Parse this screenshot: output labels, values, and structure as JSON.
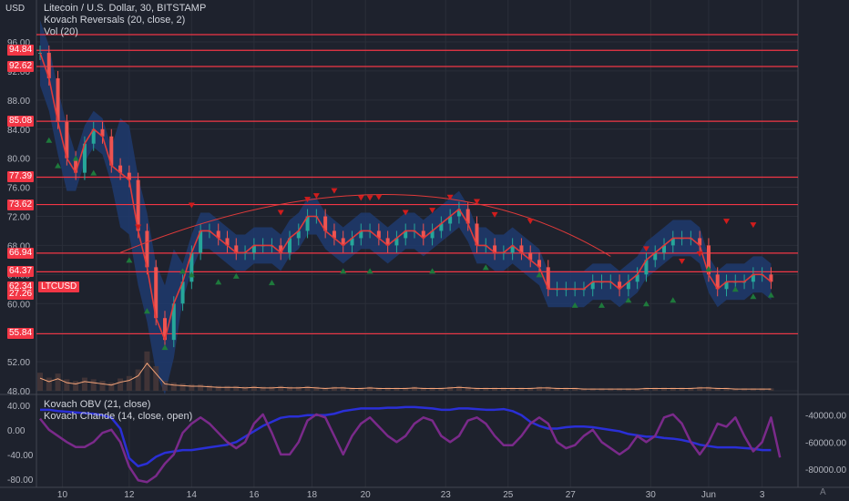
{
  "header": {
    "currency": "USD",
    "title": "Litecoin / U.S. Dollar, 30, BITSTAMP",
    "indicator1": "Kovach Reversals (20, close, 2)",
    "indicator2": "Vol (20)",
    "lower_indicator1": "Kovach OBV (21, close)",
    "lower_indicator2": "Kovach Chande (14, close, open)",
    "auto_button": "A"
  },
  "symbol_label": "LTCUSD",
  "price_labels": [
    {
      "value": "94.84",
      "price": 94.84
    },
    {
      "value": "92.62",
      "price": 92.62
    },
    {
      "value": "85.08",
      "price": 85.08
    },
    {
      "value": "77.39",
      "price": 77.39
    },
    {
      "value": "73.62",
      "price": 73.62
    },
    {
      "value": "66.94",
      "price": 66.94
    },
    {
      "value": "64.37",
      "price": 64.37
    },
    {
      "value": "62.34",
      "price": 62.34
    },
    {
      "value": "27.26",
      "price": 61.3
    },
    {
      "value": "55.84",
      "price": 55.84
    }
  ],
  "colors": {
    "background": "#1e222d",
    "hline": "#f23645",
    "band": "#1e3a6e",
    "grid": "#2a2e39",
    "ma": "#e03a3a",
    "candle_up": "#26a69a",
    "candle_down": "#ef5350",
    "obv": "#2a2fd6",
    "chande": "#7a2a8a",
    "triangle_up": "#1e7a3c",
    "triangle_down": "#d01c1c"
  },
  "chart_data": [
    {
      "type": "line",
      "name_text": "Litecoin / U.S. Dollar, 30, BITSTAMP",
      "title": "Litecoin / U.S. Dollar, 30, BITSTAMP",
      "y_axis_unit": "USD",
      "y_ticks": [
        96,
        92,
        88,
        84,
        80,
        76,
        72,
        68,
        64,
        60,
        56,
        52,
        48
      ],
      "y_tick_labels": [
        "96.00",
        "92.00",
        "88.00",
        "84.00",
        "80.00",
        "76.00",
        "72.00",
        "68.00",
        "64.00",
        "60.00",
        "56.00",
        "52.00",
        "48.00"
      ],
      "ylim": [
        47.5,
        97
      ],
      "x_tick_labels": [
        "10",
        "12",
        "14",
        "16",
        "18",
        "20",
        "23",
        "25",
        "27",
        "30",
        "Jun",
        "3"
      ],
      "x_tick_index": [
        2.5,
        10,
        17,
        24,
        30.5,
        36.5,
        45.5,
        52.5,
        59.5,
        68.5,
        75,
        81
      ],
      "xlim": [
        0,
        84
      ],
      "horizontal_levels": [
        97.0,
        94.84,
        92.62,
        85.08,
        77.39,
        73.62,
        66.94,
        64.37,
        55.84
      ],
      "price": [
        94.5,
        91,
        85,
        80,
        78,
        82,
        84,
        83,
        79,
        78,
        77,
        70,
        65,
        58,
        55,
        60,
        63,
        67,
        70,
        70,
        69,
        68,
        67,
        67,
        68,
        68,
        68,
        67,
        69,
        70,
        72,
        72,
        70,
        69,
        68,
        69,
        70,
        70,
        69,
        68,
        69,
        70,
        70,
        69,
        70,
        71,
        72,
        73,
        71,
        68,
        68,
        67,
        67,
        68,
        67,
        66,
        65,
        62,
        62,
        62,
        62,
        62,
        63,
        63,
        63,
        62,
        63,
        64,
        66,
        67,
        68,
        69,
        69,
        69,
        68,
        64,
        62,
        63,
        63,
        63,
        64,
        64,
        63
      ],
      "volume": [
        2.2,
        1.6,
        2.1,
        1.4,
        1.2,
        1.6,
        1.4,
        1.2,
        1.0,
        1.5,
        1.8,
        2.6,
        4.8,
        3.0,
        1.2,
        1.0,
        0.9,
        0.8,
        0.8,
        0.7,
        0.6,
        0.6,
        0.6,
        0.5,
        0.6,
        0.5,
        0.5,
        0.6,
        0.5,
        0.5,
        0.6,
        0.5,
        0.4,
        0.5,
        0.5,
        0.4,
        0.4,
        0.5,
        0.4,
        0.4,
        0.4,
        0.4,
        0.5,
        0.4,
        0.4,
        0.4,
        0.5,
        0.6,
        0.5,
        0.4,
        0.4,
        0.4,
        0.4,
        0.4,
        0.4,
        0.4,
        0.5,
        0.5,
        0.4,
        0.4,
        0.4,
        0.3,
        0.3,
        0.3,
        0.3,
        0.3,
        0.3,
        0.3,
        0.4,
        0.4,
        0.4,
        0.4,
        0.4,
        0.4,
        0.5,
        0.5,
        0.4,
        0.4,
        0.3,
        0.3,
        0.3,
        0.3,
        0.3
      ],
      "arc": {
        "from_index": 9,
        "peak_index": 39,
        "to_index": 64,
        "from_price": 67,
        "peak_price": 75,
        "to_price": 66.5
      },
      "triangles_down": [
        [
          11,
          70.5
        ],
        [
          17,
          73.5
        ],
        [
          27,
          72.5
        ],
        [
          30,
          74.3
        ],
        [
          31,
          74.8
        ],
        [
          33,
          75.5
        ],
        [
          36,
          74.5
        ],
        [
          37,
          74.5
        ],
        [
          38,
          74.6
        ],
        [
          41,
          72.5
        ],
        [
          44,
          72.8
        ],
        [
          46,
          74.6
        ],
        [
          49,
          74
        ],
        [
          51,
          72.2
        ],
        [
          55,
          71.3
        ],
        [
          68,
          67.5
        ],
        [
          72,
          65.8
        ],
        [
          74,
          66.8
        ],
        [
          77,
          71.3
        ],
        [
          80,
          70.8
        ]
      ],
      "triangles_up": [
        [
          1,
          82.5
        ],
        [
          2,
          79
        ],
        [
          4,
          80
        ],
        [
          6,
          78
        ],
        [
          10,
          66
        ],
        [
          12,
          59
        ],
        [
          14,
          54
        ],
        [
          16,
          64.5
        ],
        [
          17,
          64
        ],
        [
          20,
          63
        ],
        [
          22,
          63.8
        ],
        [
          26,
          62.9
        ],
        [
          34,
          64.5
        ],
        [
          37,
          64.5
        ],
        [
          44,
          64.5
        ],
        [
          50,
          65
        ],
        [
          56,
          64
        ],
        [
          60,
          59.8
        ],
        [
          63,
          59.8
        ],
        [
          66,
          60.5
        ],
        [
          68,
          60
        ],
        [
          71,
          60.5
        ],
        [
          75,
          64.8
        ],
        [
          78,
          62
        ],
        [
          80,
          61
        ],
        [
          82,
          61.2
        ]
      ]
    },
    {
      "type": "line",
      "title": "Kovach OBV (21, close)",
      "y_ticks_left": [
        40,
        20,
        0,
        -20,
        -40,
        -60,
        -80
      ],
      "y_tick_labels_left": [
        "40.00",
        "",
        "0.00",
        "",
        "-40.00",
        "",
        "-80.00"
      ],
      "ylim_left": [
        -92,
        50
      ],
      "y_ticks_right": [
        -40000,
        -60000,
        -80000
      ],
      "y_tick_labels_right": [
        "-40000.00",
        "-60000.00",
        "-80000.00"
      ],
      "ylim_right": [
        -93000,
        -28000
      ],
      "series": [
        {
          "name": "Kovach OBV (21, close)",
          "axis": "right",
          "values": [
            -36000,
            -36000,
            -37000,
            -37500,
            -38000,
            -38500,
            -39000,
            -40000,
            -42000,
            -50000,
            -72000,
            -78000,
            -76000,
            -71000,
            -68000,
            -67000,
            -66000,
            -66000,
            -65000,
            -64000,
            -63000,
            -62000,
            -60000,
            -56000,
            -52000,
            -48000,
            -45000,
            -42000,
            -41000,
            -41000,
            -40000,
            -40000,
            -40000,
            -39000,
            -37000,
            -36000,
            -35000,
            -35000,
            -35000,
            -34500,
            -34500,
            -34000,
            -34000,
            -34500,
            -35000,
            -36000,
            -36000,
            -35000,
            -35000,
            -35500,
            -36000,
            -36000,
            -35500,
            -37000,
            -40000,
            -45000,
            -48000,
            -50000,
            -50000,
            -49000,
            -48500,
            -48500,
            -49000,
            -50000,
            -51000,
            -52000,
            -54000,
            -55000,
            -56000,
            -56000,
            -57000,
            -57500,
            -58500,
            -60000,
            -62000,
            -63000,
            -64000,
            -64000,
            -64000,
            -64500,
            -65000,
            -66000,
            -66000
          ]
        },
        {
          "name": "Kovach Chande (14, close, open)",
          "axis": "left",
          "values": [
            18,
            0,
            -10,
            -20,
            -28,
            -28,
            -20,
            -5,
            0,
            -20,
            -60,
            -82,
            -85,
            -75,
            -55,
            -40,
            -5,
            10,
            20,
            10,
            -5,
            -20,
            -30,
            -20,
            10,
            25,
            -5,
            -40,
            -40,
            -20,
            15,
            25,
            20,
            -10,
            -40,
            -10,
            10,
            20,
            5,
            -10,
            -20,
            -10,
            10,
            20,
            15,
            -10,
            -20,
            -10,
            15,
            20,
            10,
            -10,
            -25,
            -25,
            -10,
            10,
            20,
            10,
            -20,
            -30,
            -25,
            -10,
            0,
            -20,
            -30,
            -40,
            -30,
            -10,
            -20,
            -10,
            20,
            25,
            10,
            -20,
            -40,
            -20,
            10,
            5,
            20,
            -10,
            -35,
            -20,
            20,
            -45
          ]
        }
      ]
    }
  ]
}
